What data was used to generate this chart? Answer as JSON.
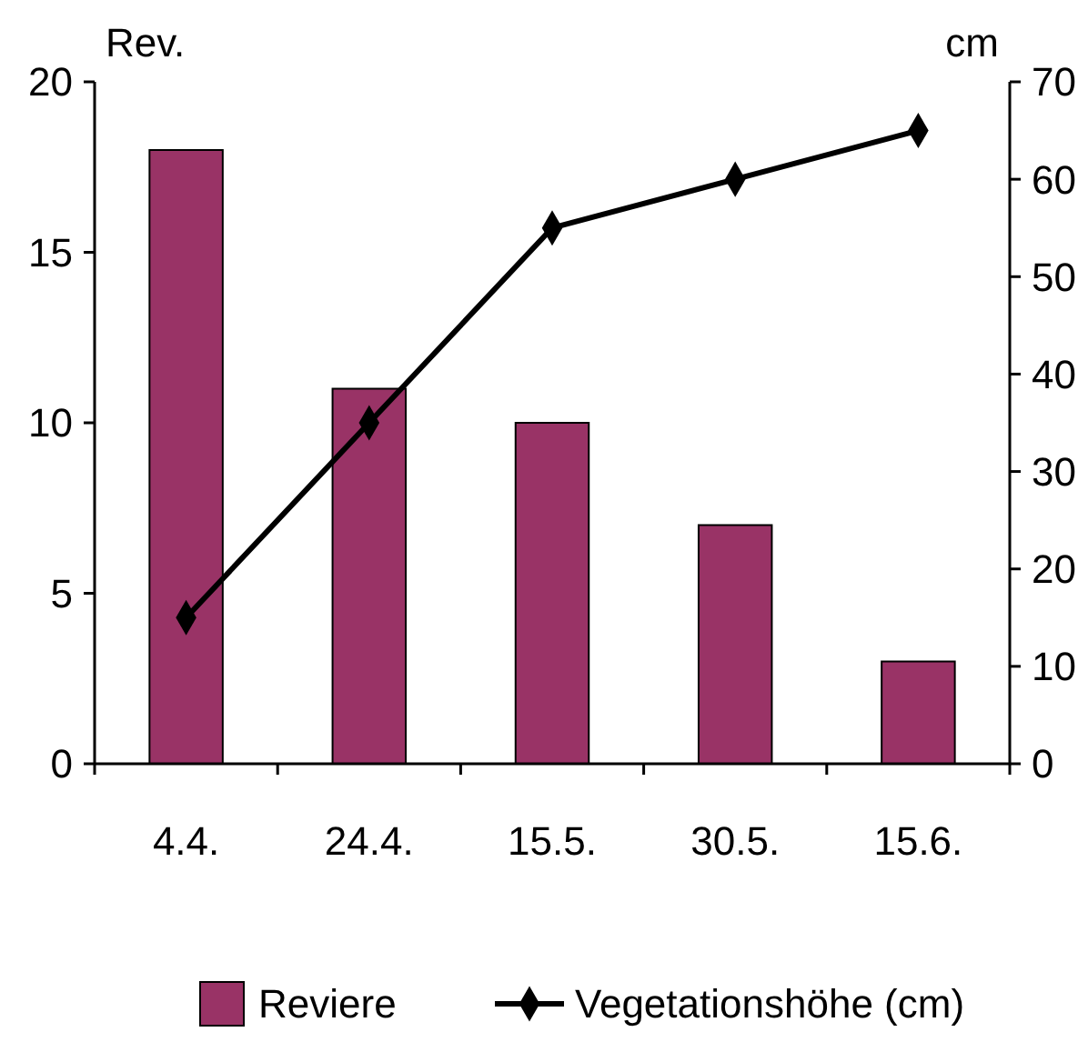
{
  "chart_data": {
    "type": "bar",
    "categories": [
      "4.4.",
      "24.4.",
      "15.5.",
      "30.5.",
      "15.6."
    ],
    "ylabel": "Rev.",
    "y2label": "cm",
    "ylim": [
      0,
      20
    ],
    "yticks": [
      0,
      5,
      10,
      15,
      20
    ],
    "y2lim": [
      0,
      70
    ],
    "y2ticks": [
      0,
      10,
      20,
      30,
      40,
      50,
      60,
      70
    ],
    "legend": "bottom",
    "grid": false,
    "series": [
      {
        "name": "Reviere",
        "color": "#993366",
        "values": [
          18,
          11,
          10,
          7,
          3
        ]
      },
      {
        "name": "Vegetationshöhe (cm)",
        "type": "line",
        "axis": "y2",
        "color": "#000000",
        "marker": "diamond",
        "line_style": "solid",
        "values": [
          15,
          35,
          55,
          60,
          65
        ]
      }
    ]
  }
}
